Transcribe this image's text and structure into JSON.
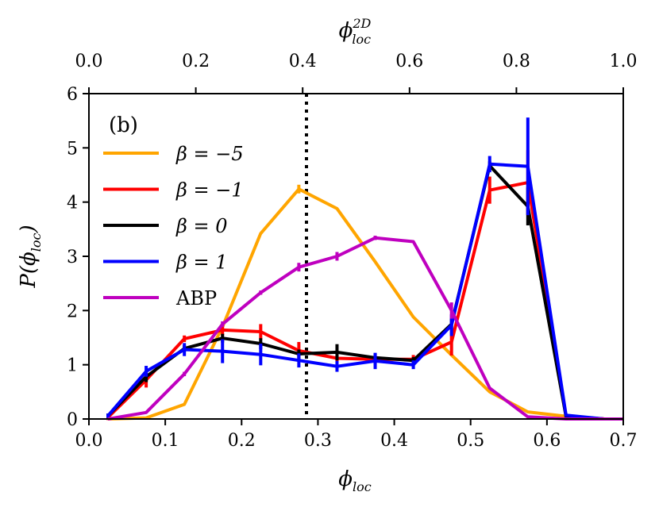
{
  "chart_data": {
    "type": "line",
    "panel_label": "(b)",
    "xlabel_main": "ϕ",
    "xlabel_sub": "loc",
    "xlabel_top_main": "ϕ",
    "xlabel_top_sub": "loc",
    "xlabel_top_sup": "2D",
    "ylabel_prefix": "P(ϕ",
    "ylabel_sub": "loc",
    "ylabel_suffix": ")",
    "xlim": [
      0.0,
      0.7
    ],
    "ylim": [
      0,
      6
    ],
    "xticks": [
      "0.0",
      "0.1",
      "0.2",
      "0.3",
      "0.4",
      "0.5",
      "0.6",
      "0.7"
    ],
    "yticks": [
      "0",
      "1",
      "2",
      "3",
      "4",
      "5",
      "6"
    ],
    "top_xlim": [
      0.0,
      1.0
    ],
    "top_xticks": [
      "0.0",
      "0.2",
      "0.4",
      "0.6",
      "0.8",
      "1.0"
    ],
    "vline_x": 0.285,
    "grid": false,
    "legend_position": "upper-left",
    "x": [
      0.025,
      0.075,
      0.125,
      0.175,
      0.225,
      0.275,
      0.325,
      0.375,
      0.425,
      0.475,
      0.525,
      0.575,
      0.625,
      0.675,
      0.7
    ],
    "series": [
      {
        "name": "β = −5",
        "color": "#FFA500",
        "values": [
          0.0,
          0.02,
          0.27,
          1.7,
          3.42,
          4.24,
          3.88,
          2.9,
          1.88,
          1.18,
          0.5,
          0.13,
          0.05,
          0.0,
          0.0
        ],
        "errors": [
          0,
          0,
          0,
          0,
          0,
          0.08,
          0,
          0,
          0,
          0,
          0,
          0,
          0,
          0,
          0
        ]
      },
      {
        "name": "β = −1",
        "color": "#FF0000",
        "values": [
          0.03,
          0.72,
          1.48,
          1.64,
          1.61,
          1.26,
          1.12,
          1.1,
          1.1,
          1.42,
          4.22,
          4.36,
          0.05,
          0.0,
          0.0
        ],
        "errors": [
          0.05,
          0.14,
          0.06,
          0.1,
          0.14,
          0.16,
          0.06,
          0.1,
          0.08,
          0.25,
          0.25,
          0.6,
          0.03,
          0,
          0
        ]
      },
      {
        "name": "β = 0",
        "color": "#000000",
        "values": [
          0.06,
          0.78,
          1.3,
          1.49,
          1.39,
          1.2,
          1.23,
          1.13,
          1.08,
          1.75,
          4.67,
          3.92,
          0.05,
          0.0,
          0.0
        ],
        "errors": [
          0.04,
          0.1,
          0.06,
          0.08,
          0.1,
          0.08,
          0.15,
          0.08,
          0.06,
          0.1,
          0.08,
          0.35,
          0.03,
          0,
          0
        ]
      },
      {
        "name": "β = 1",
        "color": "#0000FF",
        "values": [
          0.06,
          0.88,
          1.28,
          1.25,
          1.19,
          1.08,
          0.97,
          1.07,
          1.0,
          1.73,
          4.7,
          4.66,
          0.07,
          0.0,
          0.0
        ],
        "errors": [
          0.04,
          0.1,
          0.12,
          0.22,
          0.2,
          0.13,
          0.1,
          0.15,
          0.08,
          0.2,
          0.15,
          0.9,
          0.03,
          0,
          0
        ]
      },
      {
        "name": "ABP",
        "color": "#BF00BF",
        "values": [
          0.0,
          0.12,
          0.83,
          1.75,
          2.33,
          2.8,
          3.0,
          3.34,
          3.27,
          2.0,
          0.57,
          0.04,
          0.0,
          0.0,
          0.0
        ],
        "errors": [
          0,
          0,
          0.04,
          0.05,
          0.04,
          0.08,
          0.08,
          0.04,
          0,
          0.15,
          0,
          0,
          0,
          0,
          0
        ]
      }
    ]
  }
}
